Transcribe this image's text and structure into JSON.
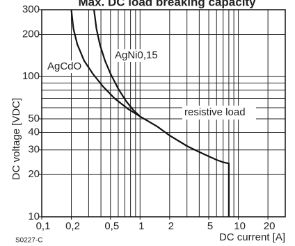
{
  "chart_data": {
    "type": "line",
    "title": "Max. DC load breaking capacity",
    "x_label": "DC current [A]",
    "y_label": "DC voltage [VDC]",
    "log_x": true,
    "log_y": true,
    "grid": true,
    "xlim": [
      0.1,
      30
    ],
    "ylim": [
      10,
      300
    ],
    "xticks": [
      {
        "value": 0.1,
        "label": "0,1"
      },
      {
        "value": 0.2,
        "label": "0,2"
      },
      {
        "value": 0.5,
        "label": "0,5"
      },
      1,
      2,
      5,
      10,
      20
    ],
    "yticks": [
      10,
      20,
      30,
      40,
      50,
      100,
      200,
      300
    ],
    "xgrid": [
      0.1,
      0.2,
      0.3,
      0.4,
      0.5,
      0.6,
      0.7,
      0.8,
      0.9,
      1,
      2,
      3,
      4,
      5,
      6,
      7,
      8,
      9,
      10,
      20,
      30
    ],
    "ygrid": [
      10,
      20,
      30,
      40,
      50,
      60,
      70,
      80,
      90,
      100,
      200,
      300
    ],
    "series": [
      {
        "name": "AgCdO",
        "color": "#111111",
        "x": [
          0.2,
          0.21,
          0.23,
          0.27,
          0.33,
          0.42,
          0.55,
          0.75,
          1,
          1.5,
          2,
          3,
          4,
          5,
          6,
          7,
          8,
          8
        ],
        "values": [
          300,
          220,
          170,
          130,
          105,
          85,
          70,
          59,
          52,
          44,
          38,
          32,
          29,
          27,
          25.5,
          24.5,
          24,
          10
        ]
      },
      {
        "name": "AgNi0,15",
        "color": "#111111",
        "x": [
          0.34,
          0.36,
          0.39,
          0.44,
          0.5,
          0.6,
          0.72,
          0.85,
          1
        ],
        "values": [
          300,
          220,
          170,
          130,
          105,
          82,
          67,
          58,
          52
        ]
      }
    ],
    "annotations": [
      "resistive load"
    ],
    "footnote": "S0227-C"
  }
}
